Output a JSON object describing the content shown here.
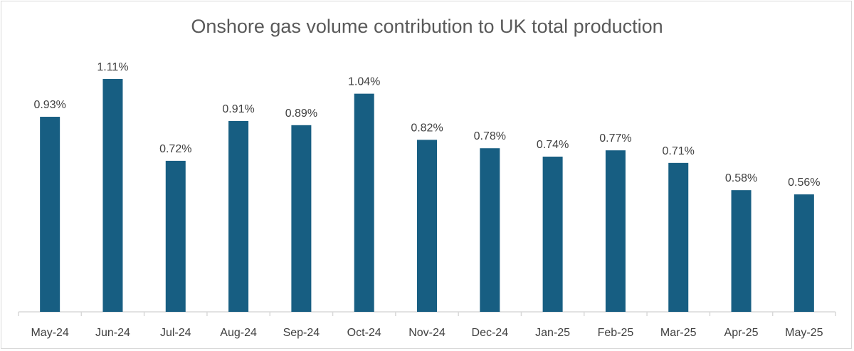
{
  "chart_data": {
    "type": "bar",
    "title": "Onshore gas volume contribution to UK total production",
    "categories": [
      "May-24",
      "Jun-24",
      "Jul-24",
      "Aug-24",
      "Sep-24",
      "Oct-24",
      "Nov-24",
      "Dec-24",
      "Jan-25",
      "Feb-25",
      "Mar-25",
      "Apr-25",
      "May-25"
    ],
    "values": [
      0.93,
      1.11,
      0.72,
      0.91,
      0.89,
      1.04,
      0.82,
      0.78,
      0.74,
      0.77,
      0.71,
      0.58,
      0.56
    ],
    "data_labels": [
      "0.93%",
      "1.11%",
      "0.72%",
      "0.91%",
      "0.89%",
      "1.04%",
      "0.82%",
      "0.78%",
      "0.74%",
      "0.77%",
      "0.71%",
      "0.58%",
      "0.56%"
    ],
    "unit": "%",
    "xlabel": "",
    "ylabel": "",
    "ylim": [
      0,
      1.2
    ],
    "grid": false,
    "legend": "none",
    "bar_color": "#175e82"
  }
}
